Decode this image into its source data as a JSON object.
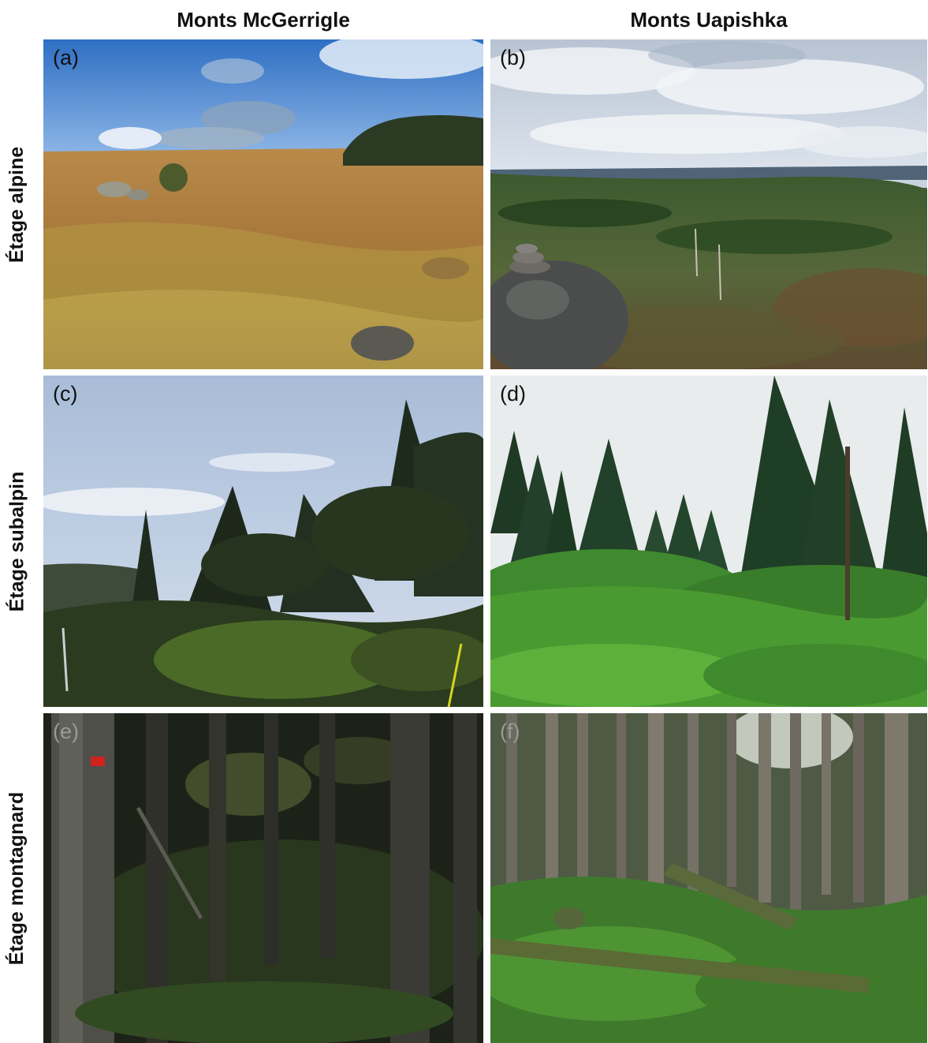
{
  "columns": [
    "Monts McGerrigle",
    "Monts Uapishka"
  ],
  "rows": [
    "Étage alpine",
    "Étage subalpin",
    "Étage montagnard"
  ],
  "panels": [
    {
      "label": "(a)"
    },
    {
      "label": "(b)"
    },
    {
      "label": "(c)"
    },
    {
      "label": "(d)"
    },
    {
      "label": "(e)"
    },
    {
      "label": "(f)"
    }
  ]
}
